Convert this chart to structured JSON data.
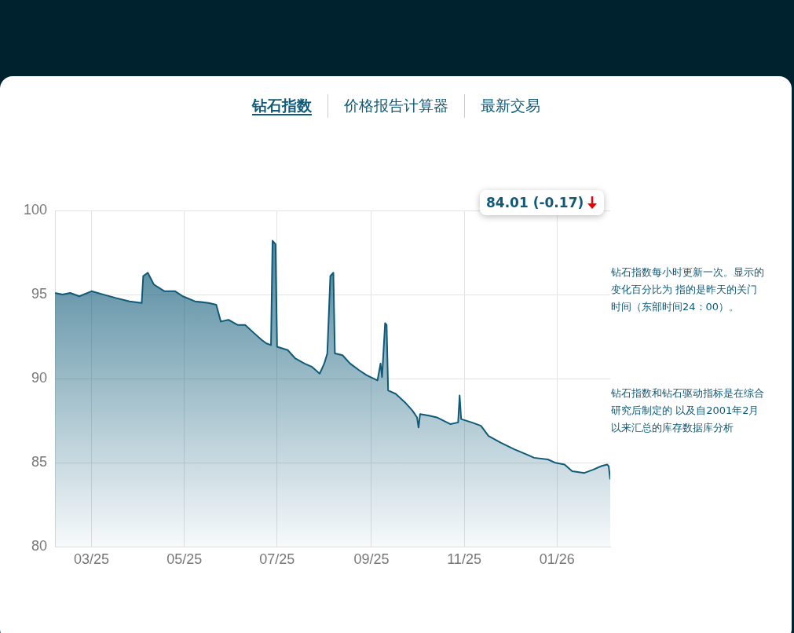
{
  "chart_data": {
    "type": "area",
    "x": [
      "2025-02-05",
      "2025-02-10",
      "2025-02-15",
      "2025-02-21",
      "2025-03-01",
      "2025-03-09",
      "2025-03-17",
      "2025-03-26",
      "2025-04-03",
      "2025-04-04",
      "2025-04-07",
      "2025-04-11",
      "2025-04-18",
      "2025-04-25",
      "2025-04-30",
      "2025-05-08",
      "2025-05-17",
      "2025-05-22",
      "2025-05-25",
      "2025-05-30",
      "2025-06-05",
      "2025-06-10",
      "2025-06-16",
      "2025-06-21",
      "2025-06-24",
      "2025-06-27",
      "2025-06-28",
      "2025-06-30",
      "2025-07-01",
      "2025-07-08",
      "2025-07-13",
      "2025-07-19",
      "2025-07-24",
      "2025-07-29",
      "2025-08-01",
      "2025-08-03",
      "2025-08-05",
      "2025-08-07",
      "2025-08-08",
      "2025-08-13",
      "2025-08-18",
      "2025-08-24",
      "2025-08-29",
      "2025-09-05",
      "2025-09-07",
      "2025-09-08",
      "2025-09-10",
      "2025-09-11",
      "2025-09-12",
      "2025-09-17",
      "2025-09-23",
      "2025-09-28",
      "2025-10-01",
      "2025-10-02",
      "2025-10-03",
      "2025-10-09",
      "2025-10-14",
      "2025-10-23",
      "2025-10-28",
      "2025-10-29",
      "2025-10-30",
      "2025-11-06",
      "2025-11-12",
      "2025-11-17",
      "2025-11-25",
      "2025-12-04",
      "2025-12-12",
      "2025-12-17",
      "2025-12-26",
      "2025-12-31",
      "2026-01-06",
      "2026-01-11",
      "2026-01-19",
      "2026-01-25",
      "2026-01-30",
      "2026-02-03",
      "2026-02-04",
      "2026-02-05"
    ],
    "series": [
      {
        "color": "#0e5a78",
        "values": [
          95.1,
          95.0,
          95.1,
          94.9,
          95.2,
          95.0,
          94.8,
          94.6,
          94.5,
          96.1,
          96.3,
          95.6,
          95.2,
          95.2,
          94.9,
          94.6,
          94.5,
          94.4,
          93.4,
          93.5,
          93.2,
          93.2,
          92.7,
          92.3,
          92.1,
          92.0,
          98.2,
          98.0,
          91.9,
          91.7,
          91.2,
          90.9,
          90.7,
          90.3,
          90.9,
          91.5,
          96.1,
          96.3,
          91.5,
          91.4,
          90.9,
          90.5,
          90.2,
          89.9,
          90.9,
          90.1,
          93.3,
          93.2,
          89.3,
          89.1,
          88.6,
          88.1,
          87.7,
          87.1,
          87.9,
          87.8,
          87.7,
          87.3,
          87.4,
          89.0,
          87.6,
          87.4,
          87.2,
          86.6,
          86.2,
          85.8,
          85.5,
          85.3,
          85.2,
          85.0,
          84.9,
          84.5,
          84.4,
          84.6,
          84.8,
          84.9,
          84.8,
          84.01
        ]
      }
    ],
    "xlim": [
      "2025-02-05",
      "2026-02-05"
    ],
    "xticks": [
      {
        "value": "2025-03-01",
        "label": "03/25"
      },
      {
        "value": "2025-05-01",
        "label": "05/25"
      },
      {
        "value": "2025-07-01",
        "label": "07/25"
      },
      {
        "value": "2025-09-01",
        "label": "09/25"
      },
      {
        "value": "2025-11-01",
        "label": "11/25"
      },
      {
        "value": "2026-01-01",
        "label": "01/26"
      }
    ],
    "ylim": [
      80,
      100
    ],
    "yticks": [
      80,
      85,
      90,
      95,
      100
    ],
    "grid": true,
    "marker": "none",
    "line_style": "solid",
    "annotations": [
      "钻石指数",
      "价格报告计算器",
      "最新交易",
      "84.01 (-0.17)",
      "钻石指数每小时更新一次。显示的变化百分比为 指的是昨天的关门时间（东部时间24：00）。",
      "钻石指数和钻石驱动指标是在综合研究后制定的 以及自2001年2月以来汇总的库存数据库分析"
    ]
  }
}
